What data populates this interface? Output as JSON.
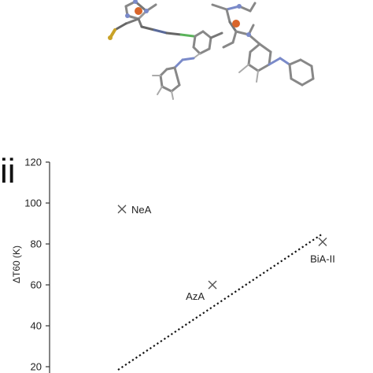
{
  "figure": {
    "panel_label": "ii"
  },
  "chart_data": {
    "type": "scatter",
    "title": "",
    "xlabel": "",
    "ylabel": "ΔT60 (K)",
    "ylim": [
      20,
      120
    ],
    "yticks": [
      "20",
      "40",
      "60",
      "80",
      "100",
      "120"
    ],
    "points": [
      {
        "label": "NeA",
        "y": 97,
        "x_rank": 1
      },
      {
        "label": "AzA",
        "y": 60,
        "x_rank": 2
      },
      {
        "label": "BiA-II",
        "y": 81,
        "x_rank": 3
      }
    ],
    "trendline": {
      "style": "dotted",
      "y_start": 20,
      "y_end": 85
    },
    "marker": "x",
    "colors": {
      "marker": "#555555",
      "axis": "#333333",
      "trend": "#111111"
    }
  }
}
